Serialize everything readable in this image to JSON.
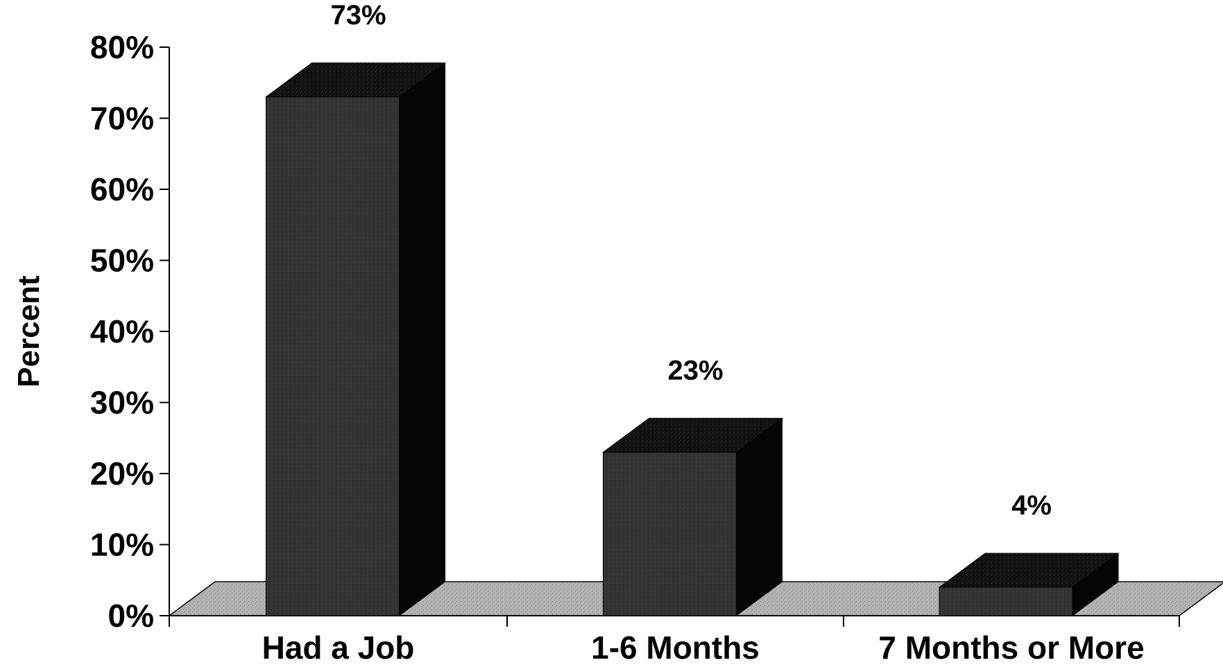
{
  "chart_data": {
    "type": "bar",
    "style": "3d",
    "categories": [
      "Had a Job",
      "1-6 Months",
      "7 Months or More"
    ],
    "values": [
      73,
      23,
      4
    ],
    "data_labels": [
      "73%",
      "23%",
      "4%"
    ],
    "title": "",
    "xlabel": "",
    "ylabel": "Percent",
    "ylim": [
      0,
      80
    ],
    "yticks": [
      0,
      10,
      20,
      30,
      40,
      50,
      60,
      70,
      80
    ],
    "ytick_labels": [
      "0%",
      "10%",
      "20%",
      "30%",
      "40%",
      "50%",
      "60%",
      "70%",
      "80%"
    ],
    "grid": false,
    "legend": "none"
  },
  "colors": {
    "bar_front": "#333333",
    "bar_top": "#111111",
    "bar_side": "#050505",
    "floor": "#b3b3b3",
    "axis": "#000000",
    "background": "#ffffff"
  }
}
